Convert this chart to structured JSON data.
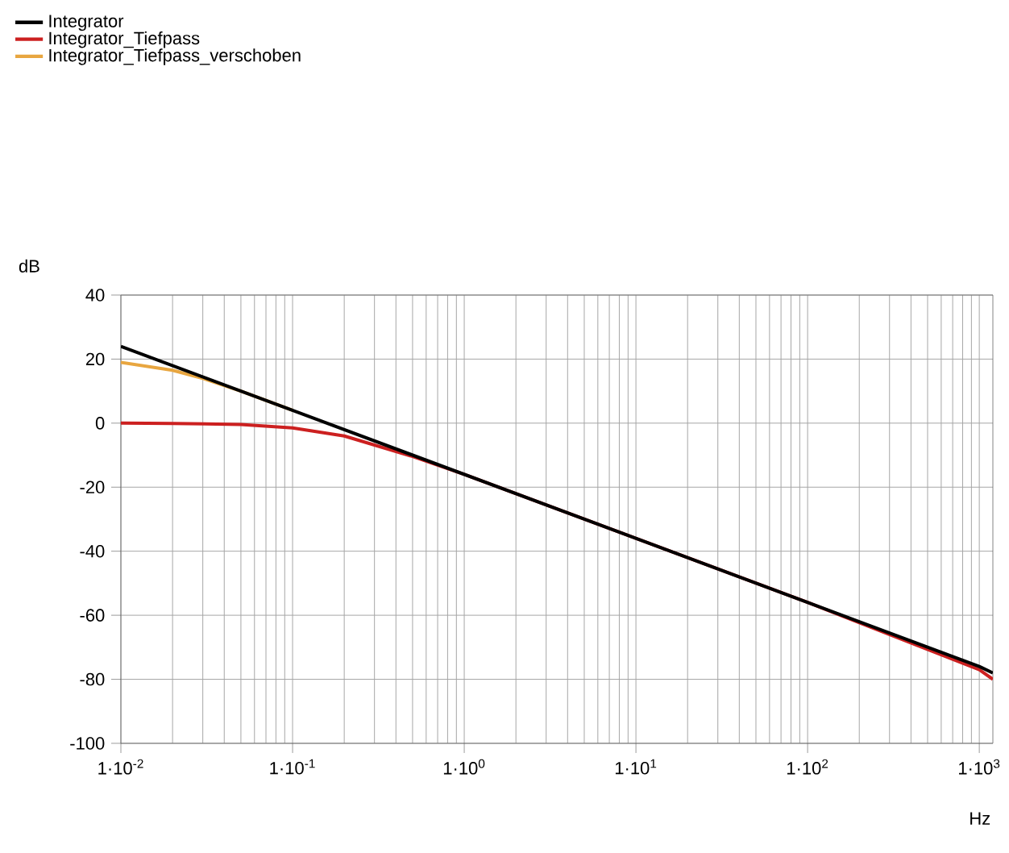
{
  "chart_data": {
    "type": "line",
    "xlabel": "Hz",
    "ylabel": "dB",
    "log": "x",
    "grid": true,
    "legend": "top left",
    "line_style": "solid",
    "marker": "none",
    "xlim": [
      0.01,
      1200
    ],
    "ylim": [
      -100,
      40
    ],
    "xticks": [
      {
        "value": 0.01,
        "label": "1·10$^{-2}$"
      },
      {
        "value": 0.1,
        "label": "1·10$^{-1}$"
      },
      {
        "value": 1,
        "label": "1·10$^{0}$"
      },
      {
        "value": 10,
        "label": "1·10$^{1}$"
      },
      {
        "value": 100,
        "label": "1·10$^{2}$"
      },
      {
        "value": 1000,
        "label": "1·10$^{3}$"
      }
    ],
    "yticks": [
      -100,
      -80,
      -60,
      -40,
      -20,
      0,
      20,
      40
    ],
    "series": [
      {
        "name": "Integrator",
        "color": "#000000",
        "x": [
          0.01,
          0.1,
          1,
          10,
          100,
          1000,
          1200
        ],
        "values": [
          24,
          4,
          -16,
          -36,
          -56,
          -76,
          -78
        ]
      },
      {
        "name": "Integrator_Tiefpass",
        "color": "#cc2020",
        "x": [
          0.01,
          0.02,
          0.05,
          0.1,
          0.2,
          0.5,
          1,
          10,
          100,
          1000,
          1200
        ],
        "values": [
          0,
          -0.1,
          -0.4,
          -1.5,
          -4,
          -10.4,
          -16,
          -36,
          -56,
          -77,
          -80
        ]
      },
      {
        "name": "Integrator_Tiefpass_verschoben",
        "color": "#e8a640",
        "x": [
          0.01,
          0.02,
          0.03,
          0.05,
          0.1
        ],
        "values": [
          19,
          16.5,
          14,
          10,
          4
        ]
      }
    ]
  }
}
